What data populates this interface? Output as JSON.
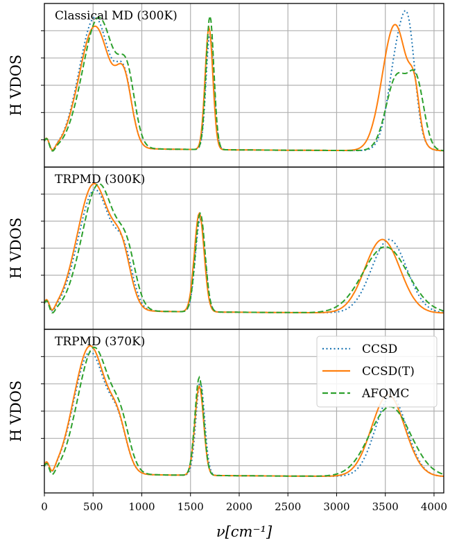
{
  "colors": {
    "CCSD": "#1f77b4",
    "CCSD(T)": "#ff7f0e",
    "AFQMC": "#2ca02c"
  },
  "chart_data": {
    "type": "line",
    "xlabel": "ν[cm⁻¹]",
    "ylabel": "H VDOS",
    "xlim": [
      0,
      4100
    ],
    "xticks": [
      "0",
      "500",
      "1000",
      "1500",
      "2000",
      "2500",
      "3000",
      "3500",
      "4000"
    ],
    "grid": true,
    "legend": {
      "placement": "upper-right of bottom panel",
      "entries": [
        {
          "name": "CCSD",
          "style": "dotted",
          "color": "#1f77b4"
        },
        {
          "name": "CCSD(T)",
          "style": "solid",
          "color": "#ff7f0e"
        },
        {
          "name": "AFQMC",
          "style": "dashed",
          "color": "#2ca02c"
        }
      ]
    },
    "panels": [
      {
        "label": "Classical MD (300K)",
        "peaks": {
          "CCSD": [
            [
              20,
              0.08,
              30
            ],
            [
              80,
              -0.03,
              25
            ],
            [
              520,
              0.88,
              160
            ],
            [
              820,
              0.4,
              80
            ],
            [
              1700,
              0.78,
              40
            ],
            [
              3660,
              0.78,
              110
            ],
            [
              3750,
              0.3,
              60
            ]
          ],
          "CCSD(T)": [
            [
              20,
              0.08,
              30
            ],
            [
              80,
              -0.03,
              25
            ],
            [
              520,
              0.82,
              160
            ],
            [
              820,
              0.4,
              80
            ],
            [
              1690,
              0.82,
              40
            ],
            [
              3600,
              0.85,
              130
            ],
            [
              3800,
              0.25,
              50
            ]
          ],
          "AFQMC": [
            [
              20,
              0.08,
              30
            ],
            [
              80,
              -0.03,
              25
            ],
            [
              560,
              0.88,
              165
            ],
            [
              850,
              0.4,
              80
            ],
            [
              1700,
              0.9,
              40
            ],
            [
              3620,
              0.5,
              110
            ],
            [
              3820,
              0.42,
              80
            ]
          ]
        }
      },
      {
        "label": "TRPMD (300K)",
        "peaks": {
          "CCSD": [
            [
              20,
              0.08,
              30
            ],
            [
              80,
              -0.03,
              25
            ],
            [
              520,
              0.82,
              170
            ],
            [
              820,
              0.3,
              90
            ],
            [
              1600,
              0.63,
              50
            ],
            [
              3540,
              0.5,
              180
            ]
          ],
          "CCSD(T)": [
            [
              20,
              0.08,
              30
            ],
            [
              80,
              -0.03,
              25
            ],
            [
              510,
              0.86,
              170
            ],
            [
              800,
              0.3,
              90
            ],
            [
              1590,
              0.67,
              50
            ],
            [
              3470,
              0.5,
              180
            ]
          ],
          "AFQMC": [
            [
              20,
              0.08,
              30
            ],
            [
              80,
              -0.03,
              25
            ],
            [
              560,
              0.86,
              170
            ],
            [
              850,
              0.3,
              90
            ],
            [
              1600,
              0.67,
              50
            ],
            [
              3500,
              0.45,
              230
            ]
          ]
        }
      },
      {
        "label": "TRPMD (370K)",
        "peaks": {
          "CCSD": [
            [
              20,
              0.08,
              30
            ],
            [
              80,
              -0.03,
              25
            ],
            [
              470,
              0.82,
              165
            ],
            [
              760,
              0.25,
              90
            ],
            [
              1600,
              0.63,
              45
            ],
            [
              3560,
              0.54,
              160
            ]
          ],
          "CCSD(T)": [
            [
              20,
              0.08,
              30
            ],
            [
              80,
              -0.03,
              25
            ],
            [
              470,
              0.86,
              165
            ],
            [
              760,
              0.25,
              90
            ],
            [
              1590,
              0.6,
              45
            ],
            [
              3530,
              0.55,
              170
            ]
          ],
          "AFQMC": [
            [
              20,
              0.08,
              30
            ],
            [
              80,
              -0.03,
              25
            ],
            [
              510,
              0.85,
              165
            ],
            [
              790,
              0.25,
              90
            ],
            [
              1590,
              0.66,
              45
            ],
            [
              3550,
              0.47,
              210
            ]
          ]
        }
      }
    ]
  }
}
